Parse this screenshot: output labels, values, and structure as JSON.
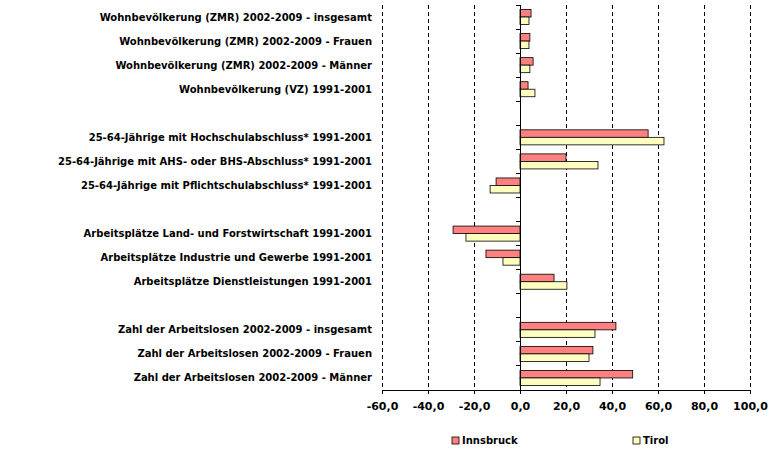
{
  "chart_data": {
    "type": "bar",
    "orientation": "horizontal",
    "grid": true,
    "legend": "bottom",
    "categories": [
      "Wohnbevölkerung (ZMR) 2002-2009 - insgesamt",
      "Wohnbevölkerung (ZMR) 2002-2009 - Frauen",
      "Wohnbevölkerung (ZMR) 2002-2009 - Männer",
      "Wohnbevölkerung (VZ) 1991-2001",
      null,
      "25-64-Jährige mit Hochschulabschluss* 1991-2001",
      "25-64-Jährige mit AHS- oder BHS-Abschluss* 1991-2001",
      "25-64-Jährige mit Pflichtschulabschluss* 1991-2001",
      null,
      "Arbeitsplätze Land- und Forstwirtschaft 1991-2001",
      "Arbeitsplätze Industrie und Gewerbe 1991-2001",
      "Arbeitsplätze Dienstleistungen 1991-2001",
      null,
      "Zahl der Arbeitslosen 2002-2009 - insgesamt",
      "Zahl der Arbeitslosen 2002-2009 - Frauen",
      "Zahl der Arbeitslosen 2002-2009 - Männer"
    ],
    "series": [
      {
        "name": "Innsbruck",
        "color": "#ff8080",
        "values": [
          4.8,
          4.3,
          5.7,
          3.5,
          null,
          55.7,
          20.0,
          -10.4,
          null,
          -29.1,
          -14.8,
          14.8,
          null,
          41.7,
          31.7,
          49.0
        ]
      },
      {
        "name": "Tirol",
        "color": "#ffffc0",
        "values": [
          3.9,
          3.9,
          4.3,
          6.5,
          null,
          62.6,
          33.9,
          -13.0,
          null,
          -23.5,
          -7.4,
          20.4,
          null,
          32.6,
          30.0,
          34.8
        ]
      }
    ],
    "xlim": [
      -60,
      100
    ],
    "xticks": [
      {
        "value": -60,
        "label": "-60,0"
      },
      {
        "value": -40,
        "label": "-40,0"
      },
      {
        "value": -20,
        "label": "-20,0"
      },
      {
        "value": 0,
        "label": "0,0"
      },
      {
        "value": 20,
        "label": "20,0"
      },
      {
        "value": 40,
        "label": "40,0"
      },
      {
        "value": 60,
        "label": "60,0"
      },
      {
        "value": 80,
        "label": "80,0"
      },
      {
        "value": 100,
        "label": "100,0"
      }
    ]
  }
}
